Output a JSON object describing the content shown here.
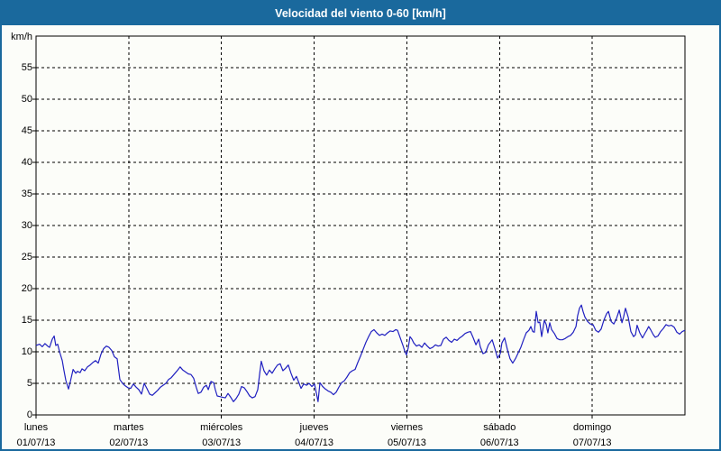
{
  "window": {
    "title": "Velocidad del viento 0-60 [km/h]"
  },
  "colors": {
    "titlebar_bg": "#1a699d",
    "frame_border": "#1a699d",
    "page_bg": "#fcfdf9",
    "title_text": "#ffffff",
    "line": "#2020c0",
    "axis": "#000000",
    "text": "#000000"
  },
  "chart_data": {
    "type": "line",
    "title": "Velocidad del viento 0-60 [km/h]",
    "ylabel": "km/h",
    "xlabel": "",
    "ylim": [
      0,
      60
    ],
    "xlim_hours": [
      0,
      168
    ],
    "grid": true,
    "grid_style": "dashed",
    "legend": "none",
    "y_ticks": [
      0,
      5,
      10,
      15,
      20,
      25,
      30,
      35,
      40,
      45,
      50,
      55
    ],
    "x_days": [
      {
        "name": "lunes",
        "date": "01/07/13",
        "start_hour": 0
      },
      {
        "name": "martes",
        "date": "02/07/13",
        "start_hour": 24
      },
      {
        "name": "miércoles",
        "date": "03/07/13",
        "start_hour": 48
      },
      {
        "name": "jueves",
        "date": "04/07/13",
        "start_hour": 72
      },
      {
        "name": "viernes",
        "date": "05/07/13",
        "start_hour": 96
      },
      {
        "name": "sábado",
        "date": "06/07/13",
        "start_hour": 120
      },
      {
        "name": "domingo",
        "date": "07/07/13",
        "start_hour": 144
      }
    ],
    "series": [
      {
        "name": "Velocidad del viento",
        "unit": "km/h",
        "color": "#2020c0",
        "points": [
          [
            0,
            11
          ],
          [
            0.9,
            11.2
          ],
          [
            1.6,
            10.8
          ],
          [
            2.3,
            11.3
          ],
          [
            3,
            10.9
          ],
          [
            3.5,
            10.7
          ],
          [
            4.2,
            12
          ],
          [
            4.7,
            12.5
          ],
          [
            5.1,
            11
          ],
          [
            5.6,
            11.2
          ],
          [
            6.1,
            10
          ],
          [
            6.8,
            8.6
          ],
          [
            7.2,
            7.1
          ],
          [
            7.7,
            5.5
          ],
          [
            8.4,
            4.1
          ],
          [
            8.9,
            5.3
          ],
          [
            9.6,
            7.2
          ],
          [
            10.3,
            6.6
          ],
          [
            10.7,
            6.9
          ],
          [
            11.4,
            6.7
          ],
          [
            11.9,
            7.3
          ],
          [
            12.6,
            7
          ],
          [
            13.3,
            7.6
          ],
          [
            14,
            7.9
          ],
          [
            14.7,
            8.3
          ],
          [
            15.4,
            8.6
          ],
          [
            16.1,
            8.2
          ],
          [
            16.8,
            9.6
          ],
          [
            17.5,
            10.5
          ],
          [
            18.2,
            10.9
          ],
          [
            18.9,
            10.7
          ],
          [
            19.6,
            10.2
          ],
          [
            20.3,
            9.2
          ],
          [
            21,
            8.9
          ],
          [
            21.7,
            5.6
          ],
          [
            22.4,
            5
          ],
          [
            23.1,
            4.6
          ],
          [
            23.8,
            4.3
          ],
          [
            24.5,
            4.2
          ],
          [
            25.2,
            4.9
          ],
          [
            25.9,
            4.4
          ],
          [
            26.6,
            4
          ],
          [
            27.3,
            3.3
          ],
          [
            28,
            5
          ],
          [
            28.7,
            4.2
          ],
          [
            29.4,
            3.3
          ],
          [
            30.1,
            3.1
          ],
          [
            30.8,
            3.5
          ],
          [
            31.5,
            3.9
          ],
          [
            32.2,
            4.4
          ],
          [
            32.9,
            4.7
          ],
          [
            33.6,
            5
          ],
          [
            34.3,
            5.6
          ],
          [
            35,
            5.9
          ],
          [
            35.7,
            6.4
          ],
          [
            36.4,
            6.9
          ],
          [
            37.3,
            7.6
          ],
          [
            38,
            7.1
          ],
          [
            38.7,
            6.8
          ],
          [
            39.4,
            6.5
          ],
          [
            40.1,
            6.4
          ],
          [
            40.8,
            5.8
          ],
          [
            41.5,
            4.3
          ],
          [
            42,
            3.4
          ],
          [
            42.7,
            3.6
          ],
          [
            43.4,
            4.4
          ],
          [
            44.1,
            4.7
          ],
          [
            44.6,
            4
          ],
          [
            45.3,
            5.3
          ],
          [
            46,
            5.1
          ],
          [
            46.4,
            4
          ],
          [
            46.9,
            3
          ],
          [
            47.6,
            2.9
          ],
          [
            48.3,
            2.8
          ],
          [
            49,
            2.7
          ],
          [
            49.7,
            3.4
          ],
          [
            50.4,
            2.8
          ],
          [
            51.1,
            2.1
          ],
          [
            51.8,
            2.6
          ],
          [
            52.5,
            3.3
          ],
          [
            53.2,
            4.5
          ],
          [
            53.9,
            4.3
          ],
          [
            54.6,
            3.7
          ],
          [
            55.3,
            3
          ],
          [
            56,
            2.7
          ],
          [
            56.7,
            2.9
          ],
          [
            57.4,
            4
          ],
          [
            57.9,
            6.5
          ],
          [
            58.3,
            8.5
          ],
          [
            59,
            7
          ],
          [
            59.7,
            6.3
          ],
          [
            60.4,
            7.1
          ],
          [
            61.1,
            6.6
          ],
          [
            61.8,
            7.3
          ],
          [
            62.5,
            7.9
          ],
          [
            63.2,
            8.1
          ],
          [
            63.9,
            7
          ],
          [
            64.6,
            7.4
          ],
          [
            65.3,
            7.9
          ],
          [
            66,
            6.6
          ],
          [
            66.7,
            5.5
          ],
          [
            67.4,
            6.1
          ],
          [
            68.1,
            5
          ],
          [
            68.6,
            4.2
          ],
          [
            69.3,
            4.9
          ],
          [
            70,
            4.7
          ],
          [
            70.7,
            5
          ],
          [
            71.4,
            4.5
          ],
          [
            72.1,
            4.9
          ],
          [
            72.6,
            3.4
          ],
          [
            73,
            2.1
          ],
          [
            73.5,
            5.1
          ],
          [
            74.2,
            4.5
          ],
          [
            74.9,
            4.1
          ],
          [
            75.6,
            3.8
          ],
          [
            76.3,
            3.6
          ],
          [
            77,
            3.2
          ],
          [
            77.7,
            3.6
          ],
          [
            78.4,
            4.4
          ],
          [
            79.1,
            5.1
          ],
          [
            79.8,
            5.4
          ],
          [
            80.5,
            6
          ],
          [
            81.2,
            6.7
          ],
          [
            81.9,
            7
          ],
          [
            82.6,
            7.2
          ],
          [
            83.3,
            8.3
          ],
          [
            84,
            9.3
          ],
          [
            84.7,
            10.4
          ],
          [
            85.4,
            11.5
          ],
          [
            86.1,
            12.4
          ],
          [
            86.8,
            13.2
          ],
          [
            87.5,
            13.5
          ],
          [
            88.2,
            13
          ],
          [
            88.9,
            12.6
          ],
          [
            89.6,
            12.8
          ],
          [
            90.3,
            12.6
          ],
          [
            91,
            13
          ],
          [
            91.7,
            13.3
          ],
          [
            92.4,
            13.2
          ],
          [
            93.1,
            13.5
          ],
          [
            93.6,
            13.4
          ],
          [
            94.3,
            12.2
          ],
          [
            95,
            11
          ],
          [
            95.4,
            10.2
          ],
          [
            95.9,
            9.5
          ],
          [
            96.4,
            10.7
          ],
          [
            96.8,
            12.4
          ],
          [
            97.3,
            12
          ],
          [
            97.8,
            11.4
          ],
          [
            98.5,
            10.9
          ],
          [
            99.2,
            11.1
          ],
          [
            99.9,
            10.7
          ],
          [
            100.6,
            11.4
          ],
          [
            101.3,
            10.9
          ],
          [
            102,
            10.5
          ],
          [
            102.7,
            10.7
          ],
          [
            103.4,
            11.1
          ],
          [
            104.1,
            10.9
          ],
          [
            104.8,
            11
          ],
          [
            105.5,
            12
          ],
          [
            106.2,
            12.3
          ],
          [
            106.9,
            11.8
          ],
          [
            107.6,
            11.5
          ],
          [
            108.3,
            12
          ],
          [
            109,
            11.8
          ],
          [
            109.7,
            12.2
          ],
          [
            110.4,
            12.5
          ],
          [
            111.1,
            12.9
          ],
          [
            111.8,
            13.1
          ],
          [
            112.5,
            13.2
          ],
          [
            113.2,
            12.2
          ],
          [
            113.9,
            11.1
          ],
          [
            114.6,
            12
          ],
          [
            115,
            10.8
          ],
          [
            115.7,
            9.7
          ],
          [
            116.4,
            9.9
          ],
          [
            117.1,
            11.1
          ],
          [
            118.1,
            11.9
          ],
          [
            118.8,
            10.5
          ],
          [
            119.5,
            9
          ],
          [
            120.2,
            9.7
          ],
          [
            120.6,
            11.4
          ],
          [
            121.3,
            12.2
          ],
          [
            122,
            10.4
          ],
          [
            122.7,
            8.9
          ],
          [
            123.4,
            8.2
          ],
          [
            124.1,
            8.9
          ],
          [
            124.8,
            9.8
          ],
          [
            125.5,
            10.7
          ],
          [
            126.2,
            11.9
          ],
          [
            126.9,
            13
          ],
          [
            127.6,
            13.4
          ],
          [
            128.1,
            14
          ],
          [
            128.6,
            13.2
          ],
          [
            129,
            13.1
          ],
          [
            129.5,
            16.4
          ],
          [
            130,
            14.6
          ],
          [
            130.4,
            14.7
          ],
          [
            130.9,
            12.4
          ],
          [
            131.6,
            15
          ],
          [
            132.1,
            14.3
          ],
          [
            132.5,
            13
          ],
          [
            133,
            14.6
          ],
          [
            133.5,
            13.5
          ],
          [
            134.2,
            12.9
          ],
          [
            134.9,
            12.1
          ],
          [
            135.6,
            11.9
          ],
          [
            136.3,
            11.9
          ],
          [
            137,
            12.1
          ],
          [
            137.7,
            12.4
          ],
          [
            138.4,
            12.6
          ],
          [
            139.1,
            13.1
          ],
          [
            139.8,
            14
          ],
          [
            140.2,
            15.7
          ],
          [
            140.7,
            16.9
          ],
          [
            141.2,
            17.4
          ],
          [
            141.6,
            16.4
          ],
          [
            142.1,
            15.5
          ],
          [
            142.8,
            14.8
          ],
          [
            143.5,
            14.4
          ],
          [
            144.2,
            14.3
          ],
          [
            144.9,
            13.4
          ],
          [
            145.6,
            13.1
          ],
          [
            146.3,
            13.6
          ],
          [
            147,
            15
          ],
          [
            147.7,
            16
          ],
          [
            148.2,
            16.4
          ],
          [
            148.9,
            14.8
          ],
          [
            149.6,
            14.4
          ],
          [
            150.3,
            15.3
          ],
          [
            151,
            16.6
          ],
          [
            151.7,
            14.6
          ],
          [
            152.1,
            15.5
          ],
          [
            152.6,
            16.9
          ],
          [
            153.3,
            15.5
          ],
          [
            154,
            13.2
          ],
          [
            154.7,
            12.4
          ],
          [
            155.2,
            12.7
          ],
          [
            155.6,
            14.2
          ],
          [
            156.3,
            13
          ],
          [
            157,
            12.2
          ],
          [
            157.7,
            13
          ],
          [
            158.1,
            13.4
          ],
          [
            158.6,
            14
          ],
          [
            159.1,
            13.5
          ],
          [
            159.8,
            12.7
          ],
          [
            160.3,
            12.3
          ],
          [
            161,
            12.5
          ],
          [
            161.7,
            13.2
          ],
          [
            162.4,
            13.7
          ],
          [
            163.1,
            14.3
          ],
          [
            163.8,
            14.1
          ],
          [
            164.5,
            14.2
          ],
          [
            165.2,
            13.9
          ],
          [
            165.9,
            13.1
          ],
          [
            166.6,
            12.8
          ],
          [
            167.3,
            13.2
          ],
          [
            168,
            13.4
          ]
        ]
      }
    ]
  }
}
